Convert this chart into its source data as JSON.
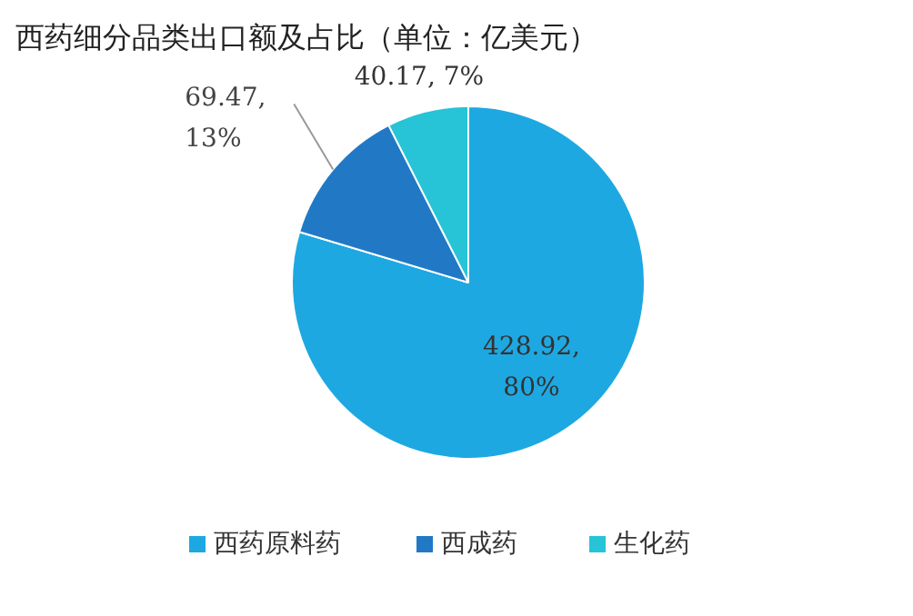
{
  "chart_data": {
    "type": "pie",
    "title": "西药细分品类出口额及占比（单位：亿美元）",
    "categories": [
      "西药原料药",
      "西成药",
      "生化药"
    ],
    "values": [
      428.92,
      69.47,
      40.17
    ],
    "colors": [
      "#1ea8e2",
      "#2179c6",
      "#27c3d6"
    ],
    "value_labels": [
      "428.92,\n80%",
      "69.47,\n13%",
      "40.17, 7%"
    ],
    "legend": "bottom"
  }
}
